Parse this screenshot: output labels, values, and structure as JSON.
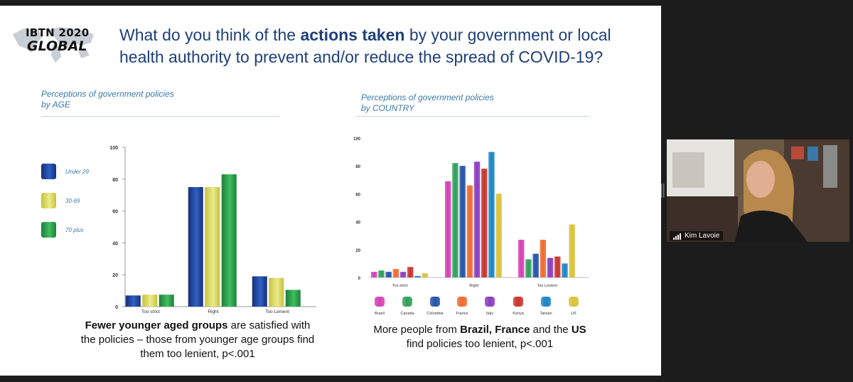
{
  "logo": {
    "line1": "IBTN 2020",
    "line2": "GLOBAL"
  },
  "question": {
    "part1": "What do you think of the ",
    "bold": "actions taken",
    "part2": " by your government or local health authority to prevent and/or reduce the spread of COVID-19?"
  },
  "age_chart_title": {
    "line1": "Perceptions of government policies",
    "line2": "by AGE"
  },
  "country_chart_title": {
    "line1": "Perceptions of government policies",
    "line2": "by COUNTRY"
  },
  "age_caption": {
    "bold": "Fewer younger aged groups",
    "rest": " are satisfied with the policies – those from younger age groups find them too lenient, p<.001"
  },
  "country_caption": {
    "part1": "More people from ",
    "bold1": "Brazil, France",
    "part2": " and the ",
    "bold2": "US",
    "part3": " find policies too lenient, p<.001"
  },
  "participant": {
    "name": "Kim Lavoie"
  },
  "colors": {
    "question": "#1e3f7a",
    "chart_title": "#3a7aa8",
    "brazil": "#d63fb4",
    "canada": "#2ea05a",
    "columbia": "#2553a8",
    "france": "#f06a2c",
    "italy": "#8a3bc0",
    "kenya": "#c8342c",
    "taiwan": "#1a85c4",
    "us": "#d9c23a"
  },
  "chart_data": [
    {
      "type": "bar",
      "title": "Perceptions of government policies by AGE",
      "categories": [
        "Too strict",
        "Right",
        "Too Lenient"
      ],
      "series": [
        {
          "name": "Under 29",
          "values": [
            7,
            75,
            19
          ]
        },
        {
          "name": "30-69",
          "values": [
            7.5,
            75,
            18
          ]
        },
        {
          "name": "70 plus",
          "values": [
            7.5,
            83,
            10.5
          ]
        }
      ],
      "ylim": [
        0,
        100
      ],
      "yticks": [
        "0",
        "20",
        "40",
        "60",
        "80",
        "100"
      ],
      "legend_position": "left"
    },
    {
      "type": "bar",
      "title": "Perceptions of government policies by COUNTRY",
      "categories": [
        "Too strict",
        "Right",
        "Too Lenient"
      ],
      "series": [
        {
          "name": "Brazil",
          "values": [
            4,
            69,
            27
          ]
        },
        {
          "name": "Canada",
          "values": [
            5,
            82,
            13
          ]
        },
        {
          "name": "Columbia",
          "values": [
            4,
            80,
            17
          ]
        },
        {
          "name": "France",
          "values": [
            6,
            66,
            27
          ]
        },
        {
          "name": "Italy",
          "values": [
            4,
            83,
            14
          ]
        },
        {
          "name": "Kenya",
          "values": [
            7.5,
            78,
            15
          ]
        },
        {
          "name": "Taiwan",
          "values": [
            1,
            90,
            10
          ]
        },
        {
          "name": "US",
          "values": [
            3,
            60,
            38
          ]
        }
      ],
      "ylim": [
        0,
        100
      ],
      "yticks": [
        "0",
        "20",
        "40",
        "60",
        "80",
        "100"
      ],
      "legend_position": "bottom"
    }
  ]
}
